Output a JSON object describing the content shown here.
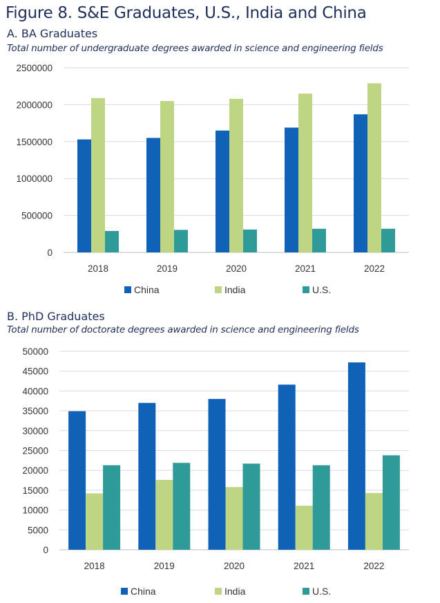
{
  "figure_title": "Figure 8. S&E Graduates, U.S., India and China",
  "colors": {
    "China": "#0f62b7",
    "India": "#bed684",
    "U.S.": "#2f9a98",
    "grid": "#d9d9d9",
    "axis": "#bfbfbf"
  },
  "chart_data": [
    {
      "type": "bar",
      "title": "A. BA Graduates",
      "subtitle": "Total number of undergraduate degrees awarded in science and engineering fields",
      "categories": [
        "2018",
        "2019",
        "2020",
        "2021",
        "2022"
      ],
      "series": [
        {
          "name": "China",
          "values": [
            1530000,
            1550000,
            1650000,
            1690000,
            1870000
          ]
        },
        {
          "name": "India",
          "values": [
            2090000,
            2050000,
            2080000,
            2150000,
            2290000
          ]
        },
        {
          "name": "U.S.",
          "values": [
            290000,
            305000,
            310000,
            320000,
            320000
          ]
        }
      ],
      "ylim": [
        0,
        2500000
      ],
      "yticks": [
        "0",
        "500000",
        "1000000",
        "1500000",
        "2000000",
        "2500000"
      ],
      "legend_position": "bottom"
    },
    {
      "type": "bar",
      "title": "B. PhD Graduates",
      "subtitle": "Total number of doctorate degrees awarded in science and engineering fields",
      "categories": [
        "2018",
        "2019",
        "2020",
        "2021",
        "2022"
      ],
      "series": [
        {
          "name": "China",
          "values": [
            34900,
            37000,
            38000,
            41600,
            47200
          ]
        },
        {
          "name": "India",
          "values": [
            14200,
            17600,
            15800,
            11100,
            14300
          ]
        },
        {
          "name": "U.S.",
          "values": [
            21300,
            21900,
            21700,
            21300,
            23800
          ]
        }
      ],
      "ylim": [
        0,
        50000
      ],
      "yticks": [
        "0",
        "5000",
        "10000",
        "15000",
        "20000",
        "25000",
        "30000",
        "35000",
        "40000",
        "45000",
        "50000"
      ],
      "legend_position": "bottom"
    }
  ]
}
